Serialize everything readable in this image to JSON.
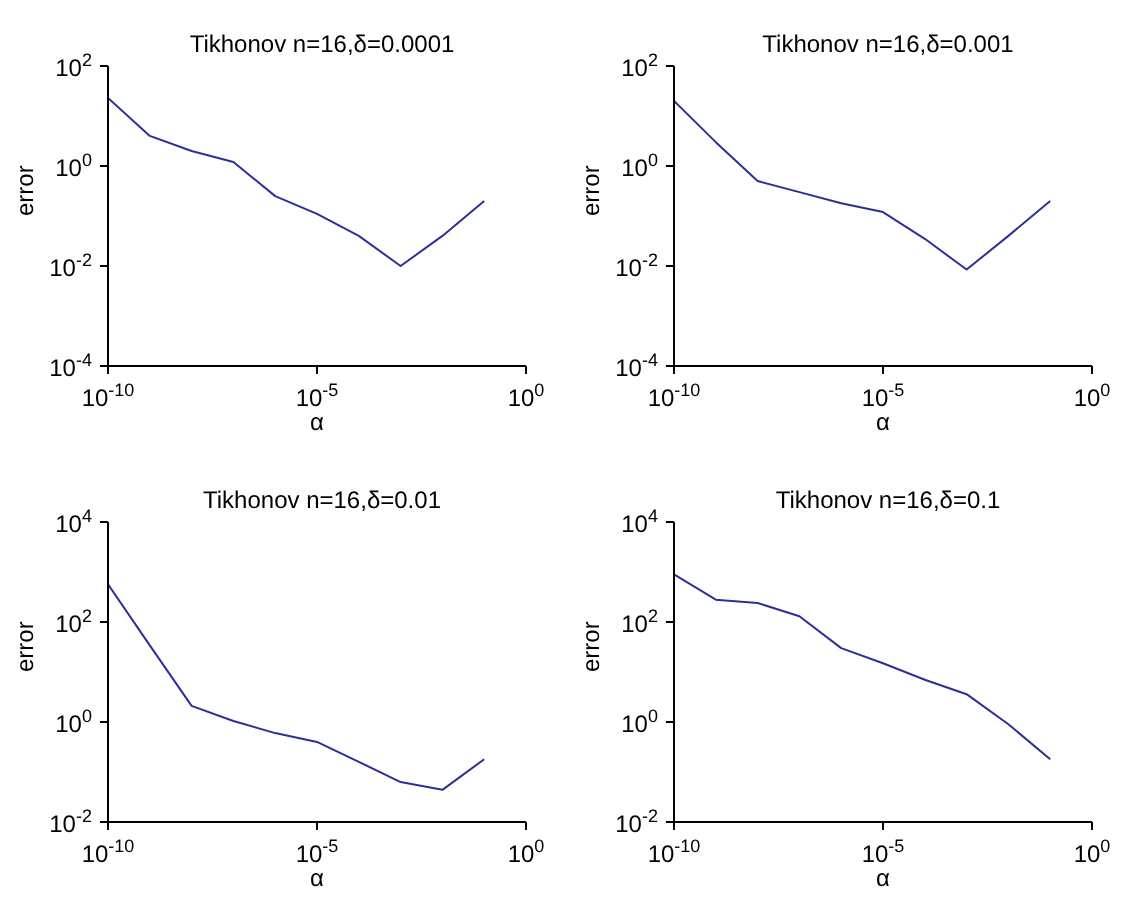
{
  "chart_data": [
    {
      "type": "line",
      "title": "Tikhonov n=16,δ=0.0001",
      "xlabel": "α",
      "ylabel": "error",
      "log": "xy",
      "xlim": [
        1e-10,
        1
      ],
      "ylim": [
        0.0001,
        100
      ],
      "xticks": [
        {
          "value": 1e-10,
          "label": "10$^{-10}$"
        },
        {
          "value": 1e-05,
          "label": "10$^{-5}$"
        },
        {
          "value": 1,
          "label": "10$^{0}$"
        }
      ],
      "yticks": [
        {
          "value": 0.0001,
          "label": "10$^{-4}$"
        },
        {
          "value": 0.01,
          "label": "10$^{-2}$"
        },
        {
          "value": 1,
          "label": "10$^{0}$"
        },
        {
          "value": 100,
          "label": "10$^{2}$"
        }
      ],
      "x": [
        1e-10,
        1e-09,
        1e-08,
        1e-07,
        1e-06,
        1e-05,
        0.0001,
        0.001,
        0.01,
        0.1
      ],
      "series": [
        {
          "color": "#2e2e9a",
          "values": [
            23,
            4,
            2,
            1.2,
            0.25,
            0.11,
            0.04,
            0.01,
            0.04,
            0.2
          ]
        }
      ]
    },
    {
      "type": "line",
      "title": "Tikhonov n=16,δ=0.001",
      "xlabel": "α",
      "ylabel": "error",
      "log": "xy",
      "xlim": [
        1e-10,
        1
      ],
      "ylim": [
        0.0001,
        100
      ],
      "xticks": [
        {
          "value": 1e-10,
          "label": "10$^{-10}$"
        },
        {
          "value": 1e-05,
          "label": "10$^{-5}$"
        },
        {
          "value": 1,
          "label": "10$^{0}$"
        }
      ],
      "yticks": [
        {
          "value": 0.0001,
          "label": "10$^{-4}$"
        },
        {
          "value": 0.01,
          "label": "10$^{-2}$"
        },
        {
          "value": 1,
          "label": "10$^{0}$"
        },
        {
          "value": 100,
          "label": "10$^{2}$"
        }
      ],
      "x": [
        1e-10,
        1e-09,
        1e-08,
        1e-07,
        1e-06,
        1e-05,
        0.0001,
        0.001,
        0.01,
        0.1
      ],
      "series": [
        {
          "color": "#2e2e9a",
          "values": [
            20,
            3,
            0.5,
            0.3,
            0.18,
            0.12,
            0.035,
            0.0085,
            0.04,
            0.2
          ]
        }
      ]
    },
    {
      "type": "line",
      "title": "Tikhonov n=16,δ=0.01",
      "xlabel": "α",
      "ylabel": "error",
      "log": "xy",
      "xlim": [
        1e-10,
        1
      ],
      "ylim": [
        0.01,
        10000
      ],
      "xticks": [
        {
          "value": 1e-10,
          "label": "10$^{-10}$"
        },
        {
          "value": 1e-05,
          "label": "10$^{-5}$"
        },
        {
          "value": 1,
          "label": "10$^{0}$"
        }
      ],
      "yticks": [
        {
          "value": 0.01,
          "label": "10$^{-2}$"
        },
        {
          "value": 1,
          "label": "10$^{0}$"
        },
        {
          "value": 100,
          "label": "10$^{2}$"
        },
        {
          "value": 10000,
          "label": "10$^{4}$"
        }
      ],
      "x": [
        1e-10,
        1e-09,
        1e-08,
        1e-07,
        1e-06,
        1e-05,
        0.0001,
        0.001,
        0.01,
        0.1
      ],
      "series": [
        {
          "color": "#2e2e9a",
          "values": [
            570,
            34,
            2.1,
            1.05,
            0.6,
            0.4,
            0.16,
            0.063,
            0.044,
            0.18
          ]
        }
      ]
    },
    {
      "type": "line",
      "title": "Tikhonov n=16,δ=0.1",
      "xlabel": "α",
      "ylabel": "error",
      "log": "xy",
      "xlim": [
        1e-10,
        1
      ],
      "ylim": [
        0.01,
        10000
      ],
      "xticks": [
        {
          "value": 1e-10,
          "label": "10$^{-10}$"
        },
        {
          "value": 1e-05,
          "label": "10$^{-5}$"
        },
        {
          "value": 1,
          "label": "10$^{0}$"
        }
      ],
      "yticks": [
        {
          "value": 0.01,
          "label": "10$^{-2}$"
        },
        {
          "value": 1,
          "label": "10$^{0}$"
        },
        {
          "value": 100,
          "label": "10$^{2}$"
        },
        {
          "value": 10000,
          "label": "10$^{4}$"
        }
      ],
      "x": [
        1e-10,
        1e-09,
        1e-08,
        1e-07,
        1e-06,
        1e-05,
        0.0001,
        0.001,
        0.01,
        0.1
      ],
      "series": [
        {
          "color": "#2e2e9a",
          "values": [
            900,
            280,
            240,
            130,
            30,
            15,
            7,
            3.6,
            0.9,
            0.18
          ]
        }
      ]
    }
  ]
}
